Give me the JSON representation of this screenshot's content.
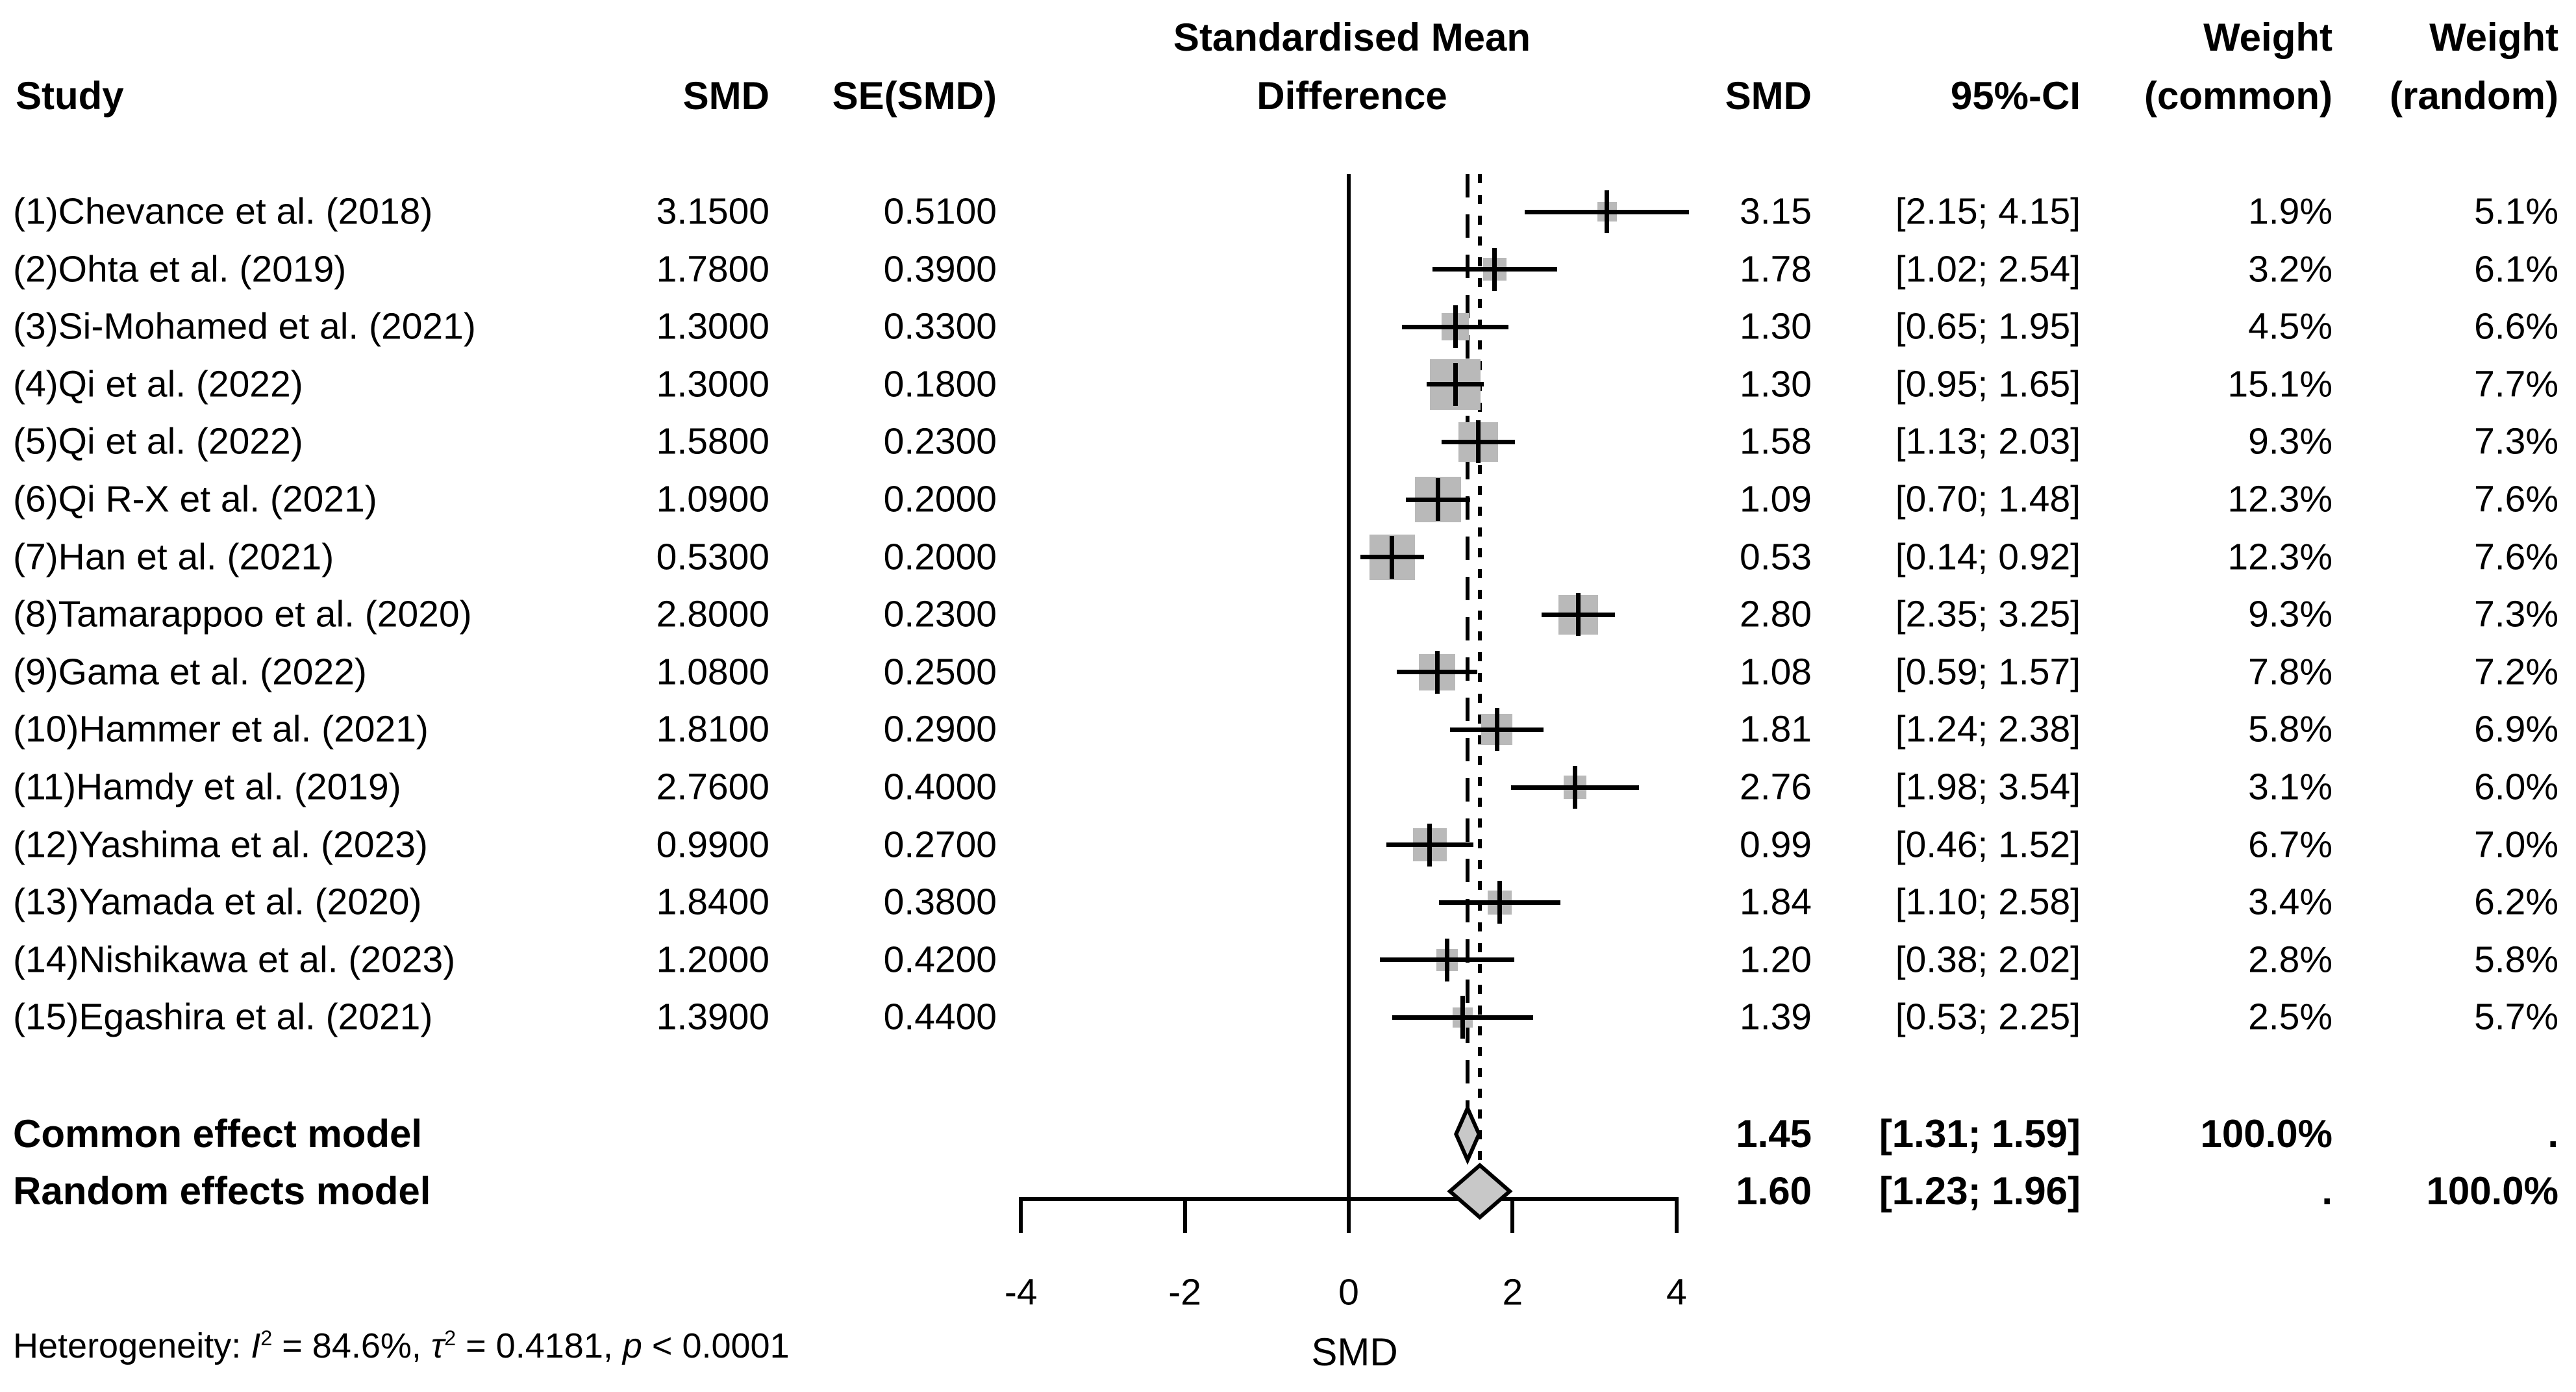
{
  "colors": {
    "background": "#ffffff",
    "text": "#000000",
    "square": "#b9b9b9",
    "diamond_fill": "#c8c8c8",
    "line": "#000000"
  },
  "header": {
    "study": "Study",
    "smd_input": "SMD",
    "se_input": "SE(SMD)",
    "plot_title_line1": "Standardised Mean",
    "plot_title_line2": "Difference",
    "smd": "SMD",
    "ci": "95%-CI",
    "weight_common_line1": "Weight",
    "weight_common_line2": "(common)",
    "weight_random_line1": "Weight",
    "weight_random_line2": "(random)"
  },
  "heterogeneity": {
    "prefix": "Heterogeneity: ",
    "i_symbol": "I",
    "i_sup": "2",
    "i_value": " = 84.6%, ",
    "tau_symbol": "τ",
    "tau_sup": "2",
    "tau_value": " = 0.4181, ",
    "p_symbol": "p",
    "p_value": " < 0.0001"
  },
  "chart_data": {
    "type": "scatter",
    "subtype": "forest_plot_meta_analysis",
    "title": "Standardised Mean Difference",
    "xlabel": "SMD",
    "xlim": [
      -4,
      4
    ],
    "reference_line_x": 0,
    "common_effect_line_x": 1.45,
    "random_effect_line_x": 1.6,
    "axis": {
      "ticks": [
        -4,
        -2,
        0,
        2,
        4
      ],
      "tick_labels": [
        "-4",
        "-2",
        "0",
        "2",
        "4"
      ]
    },
    "studies": [
      {
        "name": "(1)Chevance et al. (2018)",
        "smd_text": "3.1500",
        "se_text": "0.5100",
        "est": 3.15,
        "lower": 2.15,
        "upper": 4.15,
        "smd": "3.15",
        "ci": "[2.15; 4.15]",
        "weight_common": "1.9%",
        "weight_random": "5.1%",
        "wc": 1.9,
        "wr": 5.1
      },
      {
        "name": "(2)Ohta et al. (2019)",
        "smd_text": "1.7800",
        "se_text": "0.3900",
        "est": 1.78,
        "lower": 1.02,
        "upper": 2.54,
        "smd": "1.78",
        "ci": "[1.02; 2.54]",
        "weight_common": "3.2%",
        "weight_random": "6.1%",
        "wc": 3.2,
        "wr": 6.1
      },
      {
        "name": "(3)Si-Mohamed et al. (2021)",
        "smd_text": "1.3000",
        "se_text": "0.3300",
        "est": 1.3,
        "lower": 0.65,
        "upper": 1.95,
        "smd": "1.30",
        "ci": "[0.65; 1.95]",
        "weight_common": "4.5%",
        "weight_random": "6.6%",
        "wc": 4.5,
        "wr": 6.6
      },
      {
        "name": "(4)Qi et al. (2022)",
        "smd_text": "1.3000",
        "se_text": "0.1800",
        "est": 1.3,
        "lower": 0.95,
        "upper": 1.65,
        "smd": "1.30",
        "ci": "[0.95; 1.65]",
        "weight_common": "15.1%",
        "weight_random": "7.7%",
        "wc": 15.1,
        "wr": 7.7
      },
      {
        "name": "(5)Qi et al. (2022)",
        "smd_text": "1.5800",
        "se_text": "0.2300",
        "est": 1.58,
        "lower": 1.13,
        "upper": 2.03,
        "smd": "1.58",
        "ci": "[1.13; 2.03]",
        "weight_common": "9.3%",
        "weight_random": "7.3%",
        "wc": 9.3,
        "wr": 7.3
      },
      {
        "name": "(6)Qi R-X et al. (2021)",
        "smd_text": "1.0900",
        "se_text": "0.2000",
        "est": 1.09,
        "lower": 0.7,
        "upper": 1.48,
        "smd": "1.09",
        "ci": "[0.70; 1.48]",
        "weight_common": "12.3%",
        "weight_random": "7.6%",
        "wc": 12.3,
        "wr": 7.6
      },
      {
        "name": "(7)Han et al. (2021)",
        "smd_text": "0.5300",
        "se_text": "0.2000",
        "est": 0.53,
        "lower": 0.14,
        "upper": 0.92,
        "smd": "0.53",
        "ci": "[0.14; 0.92]",
        "weight_common": "12.3%",
        "weight_random": "7.6%",
        "wc": 12.3,
        "wr": 7.6
      },
      {
        "name": "(8)Tamarappoo et al. (2020)",
        "smd_text": "2.8000",
        "se_text": "0.2300",
        "est": 2.8,
        "lower": 2.35,
        "upper": 3.25,
        "smd": "2.80",
        "ci": "[2.35; 3.25]",
        "weight_common": "9.3%",
        "weight_random": "7.3%",
        "wc": 9.3,
        "wr": 7.3
      },
      {
        "name": "(9)Gama et al. (2022)",
        "smd_text": "1.0800",
        "se_text": "0.2500",
        "est": 1.08,
        "lower": 0.59,
        "upper": 1.57,
        "smd": "1.08",
        "ci": "[0.59; 1.57]",
        "weight_common": "7.8%",
        "weight_random": "7.2%",
        "wc": 7.8,
        "wr": 7.2
      },
      {
        "name": "(10)Hammer et al. (2021)",
        "smd_text": "1.8100",
        "se_text": "0.2900",
        "est": 1.81,
        "lower": 1.24,
        "upper": 2.38,
        "smd": "1.81",
        "ci": "[1.24; 2.38]",
        "weight_common": "5.8%",
        "weight_random": "6.9%",
        "wc": 5.8,
        "wr": 6.9
      },
      {
        "name": "(11)Hamdy et al. (2019)",
        "smd_text": "2.7600",
        "se_text": "0.4000",
        "est": 2.76,
        "lower": 1.98,
        "upper": 3.54,
        "smd": "2.76",
        "ci": "[1.98; 3.54]",
        "weight_common": "3.1%",
        "weight_random": "6.0%",
        "wc": 3.1,
        "wr": 6.0
      },
      {
        "name": "(12)Yashima et al. (2023)",
        "smd_text": "0.9900",
        "se_text": "0.2700",
        "est": 0.99,
        "lower": 0.46,
        "upper": 1.52,
        "smd": "0.99",
        "ci": "[0.46; 1.52]",
        "weight_common": "6.7%",
        "weight_random": "7.0%",
        "wc": 6.7,
        "wr": 7.0
      },
      {
        "name": "(13)Yamada et al. (2020)",
        "smd_text": "1.8400",
        "se_text": "0.3800",
        "est": 1.84,
        "lower": 1.1,
        "upper": 2.58,
        "smd": "1.84",
        "ci": "[1.10; 2.58]",
        "weight_common": "3.4%",
        "weight_random": "6.2%",
        "wc": 3.4,
        "wr": 6.2
      },
      {
        "name": "(14)Nishikawa et al. (2023)",
        "smd_text": "1.2000",
        "se_text": "0.4200",
        "est": 1.2,
        "lower": 0.38,
        "upper": 2.02,
        "smd": "1.20",
        "ci": "[0.38; 2.02]",
        "weight_common": "2.8%",
        "weight_random": "5.8%",
        "wc": 2.8,
        "wr": 5.8
      },
      {
        "name": "(15)Egashira et al. (2021)",
        "smd_text": "1.3900",
        "se_text": "0.4400",
        "est": 1.39,
        "lower": 0.53,
        "upper": 2.25,
        "smd": "1.39",
        "ci": "[0.53; 2.25]",
        "weight_common": "2.5%",
        "weight_random": "5.7%",
        "wc": 2.5,
        "wr": 5.7
      }
    ],
    "pooled": [
      {
        "name": "Common effect model",
        "est": 1.45,
        "lower": 1.31,
        "upper": 1.59,
        "smd": "1.45",
        "ci": "[1.31; 1.59]",
        "weight_common": "100.0%",
        "weight_random": ".",
        "wc": 100.0,
        "wr": null
      },
      {
        "name": "Random effects model",
        "est": 1.6,
        "lower": 1.23,
        "upper": 1.96,
        "smd": "1.60",
        "ci": "[1.23; 1.96]",
        "weight_common": ".",
        "weight_random": "100.0%",
        "wc": null,
        "wr": 100.0
      }
    ],
    "heterogeneity": {
      "I2_pct": 84.6,
      "tau2": 0.4181,
      "p": "< 0.0001"
    }
  }
}
